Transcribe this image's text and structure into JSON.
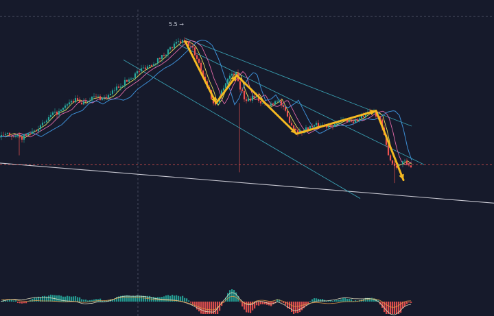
{
  "chart_data": {
    "type": "candlestick",
    "annotations": {
      "peak_label": "5.5 →"
    },
    "colors": {
      "background": "#161a2b",
      "bull": "#26a69a",
      "bear": "#ef5350",
      "wave_arrow": "#f5b921",
      "channel": "#3fb7c9",
      "ma_fast": "#e8e05a",
      "ma_mid": "#e26aa8",
      "ma_slow": "#3d8fd6",
      "trendline": "#c8c8d2",
      "price_line": "#ef5350"
    },
    "price_path": [
      [
        0,
        38
      ],
      [
        15,
        40
      ],
      [
        30,
        37
      ],
      [
        45,
        41
      ],
      [
        60,
        45
      ],
      [
        75,
        52
      ],
      [
        90,
        55
      ],
      [
        100,
        60
      ],
      [
        110,
        62
      ],
      [
        120,
        60
      ],
      [
        130,
        63
      ],
      [
        140,
        64
      ],
      [
        150,
        63
      ],
      [
        160,
        65
      ],
      [
        170,
        70
      ],
      [
        180,
        73
      ],
      [
        190,
        76
      ],
      [
        200,
        80
      ],
      [
        210,
        83
      ],
      [
        220,
        85
      ],
      [
        230,
        88
      ],
      [
        240,
        92
      ],
      [
        250,
        96
      ],
      [
        258,
        99
      ],
      [
        265,
        100
      ],
      [
        272,
        99
      ],
      [
        280,
        96
      ],
      [
        290,
        86
      ],
      [
        298,
        75
      ],
      [
        305,
        68
      ],
      [
        312,
        58
      ],
      [
        318,
        62
      ],
      [
        325,
        70
      ],
      [
        332,
        76
      ],
      [
        340,
        80
      ],
      [
        345,
        78
      ],
      [
        350,
        70
      ],
      [
        357,
        62
      ],
      [
        365,
        63
      ],
      [
        372,
        66
      ],
      [
        380,
        60
      ],
      [
        390,
        58
      ],
      [
        400,
        61
      ],
      [
        405,
        63
      ],
      [
        412,
        57
      ],
      [
        420,
        50
      ],
      [
        428,
        44
      ],
      [
        436,
        41
      ],
      [
        445,
        43
      ],
      [
        455,
        45
      ],
      [
        465,
        46
      ],
      [
        475,
        45
      ],
      [
        485,
        46
      ],
      [
        495,
        48
      ],
      [
        505,
        49
      ],
      [
        515,
        48
      ],
      [
        525,
        50
      ],
      [
        535,
        53
      ],
      [
        545,
        54
      ],
      [
        552,
        51
      ],
      [
        558,
        42
      ],
      [
        564,
        30
      ],
      [
        570,
        22
      ],
      [
        576,
        19
      ],
      [
        582,
        20
      ],
      [
        588,
        22
      ],
      [
        594,
        20
      ],
      [
        600,
        19
      ]
    ],
    "wave_points": [
      [
        270,
        100
      ],
      [
        315,
        60
      ],
      [
        345,
        78
      ],
      [
        432,
        40
      ],
      [
        548,
        55
      ],
      [
        588,
        10
      ]
    ],
    "channel_lines": {
      "upper": [
        [
          270,
          102
        ],
        [
          600,
          45
        ]
      ],
      "lower": [
        [
          180,
          88
        ],
        [
          525,
          -2
        ]
      ],
      "mid": [
        [
          260,
          98
        ],
        [
          618,
          20
        ]
      ]
    },
    "trendline": [
      [
        0,
        21
      ],
      [
        720,
        -5
      ]
    ],
    "price_line_y": 20,
    "y_range": [
      -20,
      110
    ],
    "x_range": [
      0,
      720
    ]
  }
}
